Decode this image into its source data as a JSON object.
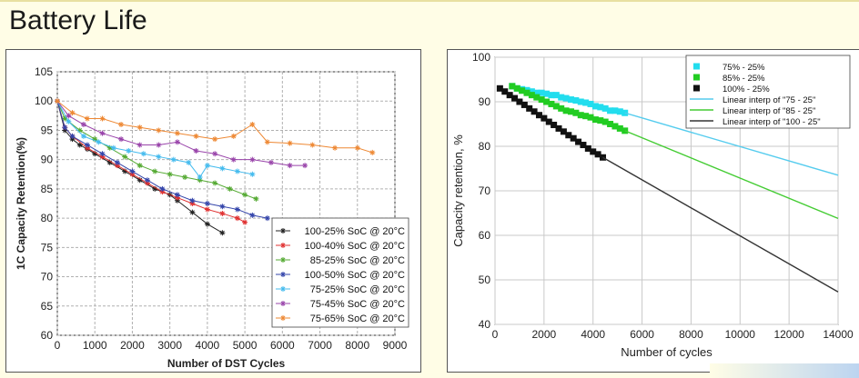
{
  "slide_title": "Battery Life",
  "colors": {
    "background": "#fffde6"
  },
  "chart_data": [
    {
      "type": "line",
      "title": "",
      "xlabel": "Number of DST Cycles",
      "ylabel": "1C Capacity Retention(%)",
      "xlim": [
        0,
        9000
      ],
      "ylim": [
        60,
        105
      ],
      "xticks": [
        "0",
        "1000",
        "2000",
        "3000",
        "4000",
        "5000",
        "6000",
        "7000",
        "8000",
        "9000"
      ],
      "yticks": [
        "60",
        "65",
        "70",
        "75",
        "80",
        "85",
        "90",
        "95",
        "100",
        "105"
      ],
      "grid": true,
      "legend_position": "bottom-right",
      "series": [
        {
          "name": "100-25% SoC @ 20°C",
          "color": "#222222",
          "marker": "star",
          "x": [
            0,
            200,
            400,
            600,
            800,
            1000,
            1400,
            1800,
            2200,
            2600,
            3000,
            3200,
            3600,
            4000,
            4400
          ],
          "y": [
            100,
            95,
            93.5,
            92.5,
            91.8,
            91,
            89.5,
            88,
            86.5,
            85,
            84,
            83,
            81,
            79,
            77.5
          ]
        },
        {
          "name": "100-40% SoC @ 20°C",
          "color": "#e03030",
          "marker": "star",
          "x": [
            0,
            200,
            400,
            800,
            1200,
            1600,
            2000,
            2400,
            2800,
            3200,
            3600,
            4000,
            4400,
            4800,
            5000
          ],
          "y": [
            100,
            95.5,
            94,
            92,
            90.5,
            89,
            87.5,
            86,
            84.5,
            83.5,
            82.5,
            81.5,
            80.8,
            80,
            79.3
          ]
        },
        {
          "name": "85-25% SoC @ 20°C",
          "color": "#55aa33",
          "marker": "star",
          "x": [
            0,
            200,
            600,
            1000,
            1400,
            1800,
            2200,
            2600,
            3000,
            3400,
            3800,
            4200,
            4600,
            5000,
            5300
          ],
          "y": [
            100,
            97,
            95,
            93.5,
            92,
            90.5,
            89,
            88,
            87.5,
            87,
            86.5,
            86,
            85,
            84,
            83.3
          ]
        },
        {
          "name": "100-50% SoC @ 20°C",
          "color": "#3344aa",
          "marker": "star",
          "x": [
            0,
            200,
            400,
            800,
            1200,
            1600,
            2000,
            2400,
            2800,
            3200,
            3600,
            4000,
            4400,
            4800,
            5200,
            5600
          ],
          "y": [
            100,
            95.5,
            94,
            92.5,
            91,
            89.5,
            88,
            86.5,
            85,
            84,
            83,
            82.5,
            82,
            81.5,
            80.5,
            80
          ]
        },
        {
          "name": "75-25% SoC @ 20°C",
          "color": "#44bbee",
          "marker": "star",
          "x": [
            0,
            300,
            700,
            1100,
            1500,
            1900,
            2300,
            2700,
            3100,
            3500,
            3800,
            4000,
            4400,
            4800,
            5200
          ],
          "y": [
            100,
            96.5,
            94,
            93,
            92,
            91.5,
            91,
            90.5,
            90,
            89.5,
            87,
            89,
            88.5,
            88,
            87.5
          ]
        },
        {
          "name": "75-45% SoC @ 20°C",
          "color": "#9944aa",
          "marker": "star",
          "x": [
            0,
            300,
            700,
            1200,
            1700,
            2200,
            2700,
            3200,
            3700,
            4200,
            4700,
            5200,
            5700,
            6200,
            6600
          ],
          "y": [
            100,
            97.5,
            96,
            94.5,
            93.5,
            92.5,
            92.5,
            93,
            91.5,
            91,
            90,
            90,
            89.5,
            89,
            89
          ]
        },
        {
          "name": "75-65% SoC @ 20°C",
          "color": "#ee8833",
          "marker": "star",
          "x": [
            0,
            400,
            800,
            1200,
            1700,
            2200,
            2700,
            3200,
            3700,
            4200,
            4700,
            5200,
            5600,
            6200,
            6800,
            7400,
            8000,
            8400
          ],
          "y": [
            100,
            98,
            97,
            97,
            96,
            95.5,
            95,
            94.5,
            94,
            93.5,
            94,
            96,
            93,
            92.8,
            92.5,
            92,
            92,
            91.2
          ]
        }
      ]
    },
    {
      "type": "scatter",
      "title": "",
      "xlabel": "Number of cycles",
      "ylabel": "Capacity retention, %",
      "xlim": [
        0,
        14000
      ],
      "ylim": [
        40,
        100
      ],
      "xticks": [
        "0",
        "2000",
        "4000",
        "6000",
        "8000",
        "10000",
        "12000",
        "14000"
      ],
      "yticks": [
        "40",
        "50",
        "60",
        "70",
        "80",
        "90",
        "100"
      ],
      "grid": true,
      "legend_position": "top-right",
      "series": [
        {
          "name": "75% - 25%",
          "color": "#22ddee",
          "marker": "square",
          "x": [
            700,
            900,
            1100,
            1300,
            1500,
            1700,
            1900,
            2100,
            2300,
            2500,
            2700,
            2900,
            3100,
            3300,
            3500,
            3700,
            3900,
            4100,
            4300,
            4500,
            4700,
            4900,
            5100,
            5300
          ],
          "y": [
            93.5,
            93,
            92.8,
            92.6,
            92.3,
            92,
            92,
            91.8,
            91.5,
            91.5,
            91,
            90.8,
            90.5,
            90.3,
            90,
            89.8,
            89.5,
            89,
            88.8,
            88.5,
            88,
            88,
            87.8,
            87.5
          ]
        },
        {
          "name": "85% - 25%",
          "color": "#22cc22",
          "marker": "square",
          "x": [
            700,
            900,
            1100,
            1300,
            1500,
            1700,
            1900,
            2100,
            2300,
            2500,
            2700,
            2900,
            3100,
            3300,
            3500,
            3700,
            3900,
            4100,
            4300,
            4500,
            4700,
            4900,
            5100,
            5300
          ],
          "y": [
            93.5,
            93,
            92.5,
            92,
            91.5,
            91,
            90.5,
            90,
            89.5,
            89,
            88.5,
            88,
            87.8,
            87.5,
            87,
            86.8,
            86.5,
            86,
            85.8,
            85.5,
            85,
            84.5,
            84,
            83.5
          ]
        },
        {
          "name": "100% - 25%",
          "color": "#111111",
          "marker": "square",
          "x": [
            200,
            400,
            600,
            800,
            1000,
            1200,
            1400,
            1600,
            1800,
            2000,
            2200,
            2400,
            2600,
            2800,
            3000,
            3200,
            3400,
            3600,
            3800,
            4000,
            4200,
            4400
          ],
          "y": [
            93,
            92.3,
            91.5,
            90.8,
            90,
            89.3,
            88.5,
            87.8,
            87,
            86.3,
            85.5,
            84.8,
            84,
            83.3,
            82.5,
            81.8,
            81,
            80.3,
            79.5,
            78.8,
            78.2,
            77.5
          ]
        },
        {
          "name": "Linear interp of \"75 - 25\"",
          "color": "#55ccee",
          "marker": "line",
          "x": [
            5300,
            14000
          ],
          "y": [
            87.5,
            73.5
          ]
        },
        {
          "name": "Linear interp of \"85 - 25\"",
          "color": "#44cc33",
          "marker": "line",
          "x": [
            5300,
            14000
          ],
          "y": [
            83.5,
            63.8
          ]
        },
        {
          "name": "Linear interp of \"100 - 25\"",
          "color": "#333333",
          "marker": "line",
          "x": [
            4400,
            14000
          ],
          "y": [
            77.5,
            47.3
          ]
        }
      ]
    }
  ]
}
